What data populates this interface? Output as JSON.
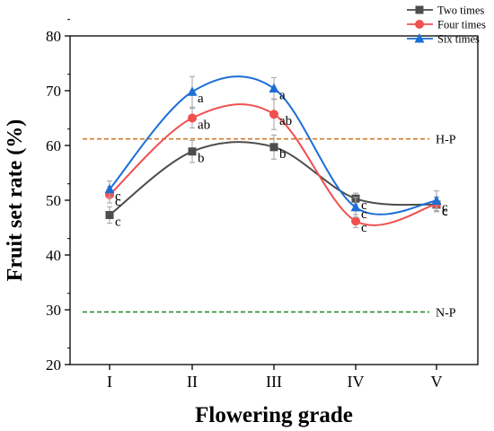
{
  "chart_data": {
    "type": "line",
    "title": "",
    "xlabel": "Flowering grade",
    "ylabel": "Fruit set rate (%)",
    "categories": [
      "I",
      "II",
      "III",
      "IV",
      "V"
    ],
    "ylim": [
      20,
      80
    ],
    "yticks": [
      20,
      30,
      40,
      50,
      60,
      70,
      80
    ],
    "grid": false,
    "legend_position": "top-right",
    "series": [
      {
        "name": "Two times",
        "color": "#4d4d4d",
        "marker": "square",
        "values": [
          47.3,
          58.9,
          59.7,
          50.3,
          49.2
        ],
        "errors": [
          1.5,
          2.0,
          2.2,
          1.0,
          1.3
        ],
        "labels": [
          "c",
          "b",
          "b",
          "c",
          "c"
        ]
      },
      {
        "name": "Four times",
        "color": "#f05050",
        "marker": "circle",
        "values": [
          51.0,
          65.0,
          65.7,
          46.2,
          49.3
        ],
        "errors": [
          1.5,
          1.8,
          2.8,
          1.2,
          1.3
        ],
        "labels": [
          "c",
          "ab",
          "ab",
          "c",
          "c"
        ]
      },
      {
        "name": "Six times",
        "color": "#1c6ed6",
        "marker": "triangle",
        "values": [
          52.0,
          69.8,
          70.4,
          48.7,
          49.9
        ],
        "errors": [
          1.5,
          2.8,
          2.0,
          1.8,
          1.8
        ],
        "labels": [
          "c",
          "a",
          "a",
          "c",
          "c"
        ]
      }
    ],
    "reference_lines": [
      {
        "label": "H-P",
        "value": 61.2,
        "color": "#d07a2a"
      },
      {
        "label": "N-P",
        "value": 29.6,
        "color": "#2e8b2e"
      }
    ]
  }
}
